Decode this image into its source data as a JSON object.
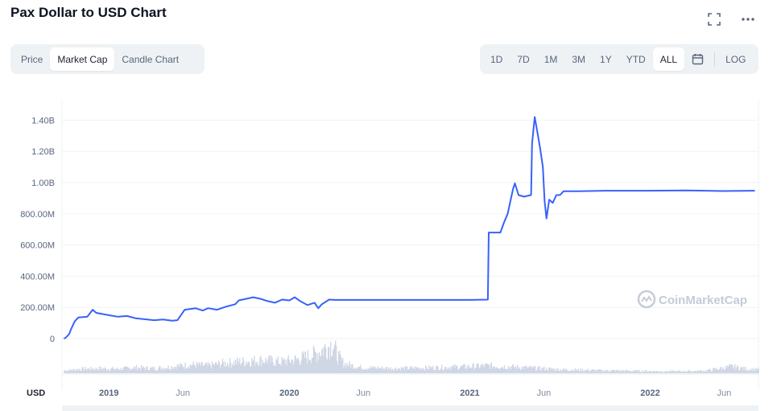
{
  "header": {
    "title": "Pax Dollar to USD Chart"
  },
  "icons": {
    "fullscreen": "fullscreen-icon",
    "more": "more-icon",
    "calendar": "calendar-icon",
    "watermark_logo": "coinmarketcap-logo-icon"
  },
  "view_tabs": [
    {
      "label": "Price",
      "active": false
    },
    {
      "label": "Market Cap",
      "active": true
    },
    {
      "label": "Candle Chart",
      "active": false
    }
  ],
  "range_tabs": [
    {
      "label": "1D",
      "active": false
    },
    {
      "label": "7D",
      "active": false
    },
    {
      "label": "1M",
      "active": false
    },
    {
      "label": "3M",
      "active": false
    },
    {
      "label": "1Y",
      "active": false
    },
    {
      "label": "YTD",
      "active": false
    },
    {
      "label": "ALL",
      "active": true
    }
  ],
  "log_label": "LOG",
  "colors": {
    "line": "#3861fb",
    "volume": "#cfd6e4",
    "grid": "#eff2f5",
    "axis_text": "#58667e"
  },
  "chart_data": {
    "type": "line",
    "currency_label": "USD",
    "watermark": "CoinMarketCap",
    "y_ticks": [
      "0",
      "200.00M",
      "400.00M",
      "600.00M",
      "800.00M",
      "1.00B",
      "1.20B",
      "1.40B"
    ],
    "y_tick_values": [
      0,
      200,
      400,
      600,
      800,
      1000,
      1200,
      1400
    ],
    "ylim": [
      0,
      1500
    ],
    "x_ticks": [
      {
        "label": "2019",
        "t": 2019.0,
        "bold": true
      },
      {
        "label": "Jun",
        "t": 2019.41,
        "bold": false
      },
      {
        "label": "2020",
        "t": 2020.0,
        "bold": true
      },
      {
        "label": "Jun",
        "t": 2020.41,
        "bold": false
      },
      {
        "label": "2021",
        "t": 2021.0,
        "bold": true
      },
      {
        "label": "Jun",
        "t": 2021.41,
        "bold": false
      },
      {
        "label": "2022",
        "t": 2022.0,
        "bold": true
      },
      {
        "label": "Jun",
        "t": 2022.41,
        "bold": false
      }
    ],
    "xlim": [
      2018.74,
      2022.6
    ],
    "series": [
      {
        "values_unit": "millions USD",
        "points": [
          [
            2018.75,
            0
          ],
          [
            2018.76,
            5
          ],
          [
            2018.78,
            30
          ],
          [
            2018.79,
            60
          ],
          [
            2018.81,
            110
          ],
          [
            2018.83,
            135
          ],
          [
            2018.88,
            140
          ],
          [
            2018.91,
            185
          ],
          [
            2018.93,
            165
          ],
          [
            2019.0,
            150
          ],
          [
            2019.05,
            140
          ],
          [
            2019.1,
            145
          ],
          [
            2019.15,
            130
          ],
          [
            2019.25,
            118
          ],
          [
            2019.3,
            122
          ],
          [
            2019.35,
            115
          ],
          [
            2019.38,
            118
          ],
          [
            2019.42,
            185
          ],
          [
            2019.48,
            195
          ],
          [
            2019.52,
            180
          ],
          [
            2019.55,
            195
          ],
          [
            2019.6,
            185
          ],
          [
            2019.65,
            205
          ],
          [
            2019.7,
            220
          ],
          [
            2019.72,
            245
          ],
          [
            2019.8,
            265
          ],
          [
            2019.84,
            255
          ],
          [
            2019.88,
            240
          ],
          [
            2019.92,
            230
          ],
          [
            2019.96,
            250
          ],
          [
            2020.0,
            245
          ],
          [
            2020.03,
            265
          ],
          [
            2020.06,
            240
          ],
          [
            2020.1,
            215
          ],
          [
            2020.14,
            230
          ],
          [
            2020.16,
            195
          ],
          [
            2020.18,
            220
          ],
          [
            2020.22,
            250
          ],
          [
            2020.25,
            248
          ],
          [
            2020.5,
            248
          ],
          [
            2020.75,
            248
          ],
          [
            2021.0,
            248
          ],
          [
            2021.1,
            250
          ],
          [
            2021.105,
            680
          ],
          [
            2021.17,
            680
          ],
          [
            2021.19,
            745
          ],
          [
            2021.21,
            800
          ],
          [
            2021.24,
            960
          ],
          [
            2021.25,
            995
          ],
          [
            2021.27,
            920
          ],
          [
            2021.3,
            910
          ],
          [
            2021.34,
            920
          ],
          [
            2021.345,
            1250
          ],
          [
            2021.36,
            1420
          ],
          [
            2021.375,
            1320
          ],
          [
            2021.39,
            1220
          ],
          [
            2021.405,
            1100
          ],
          [
            2021.415,
            880
          ],
          [
            2021.425,
            770
          ],
          [
            2021.44,
            890
          ],
          [
            2021.46,
            870
          ],
          [
            2021.48,
            920
          ],
          [
            2021.5,
            920
          ],
          [
            2021.52,
            945
          ],
          [
            2021.6,
            945
          ],
          [
            2021.75,
            948
          ],
          [
            2022.0,
            948
          ],
          [
            2022.2,
            950
          ],
          [
            2022.4,
            946
          ],
          [
            2022.58,
            948
          ]
        ]
      }
    ],
    "volume_bars": [
      [
        2018.76,
        6
      ],
      [
        2018.85,
        9
      ],
      [
        2018.95,
        10
      ],
      [
        2019.05,
        9
      ],
      [
        2019.15,
        12
      ],
      [
        2019.25,
        10
      ],
      [
        2019.35,
        14
      ],
      [
        2019.45,
        18
      ],
      [
        2019.55,
        16
      ],
      [
        2019.65,
        22
      ],
      [
        2019.75,
        25
      ],
      [
        2019.85,
        28
      ],
      [
        2019.95,
        24
      ],
      [
        2020.05,
        30
      ],
      [
        2020.12,
        38
      ],
      [
        2020.16,
        45
      ],
      [
        2020.2,
        55
      ],
      [
        2020.24,
        62
      ],
      [
        2020.26,
        40
      ],
      [
        2020.3,
        20
      ],
      [
        2020.4,
        12
      ],
      [
        2020.6,
        10
      ],
      [
        2020.8,
        12
      ],
      [
        2021.0,
        14
      ],
      [
        2021.1,
        16
      ],
      [
        2021.3,
        12
      ],
      [
        2021.5,
        8
      ],
      [
        2021.7,
        6
      ],
      [
        2021.9,
        5
      ],
      [
        2022.1,
        4
      ],
      [
        2022.3,
        5
      ],
      [
        2022.45,
        14
      ],
      [
        2022.55,
        8
      ]
    ]
  }
}
